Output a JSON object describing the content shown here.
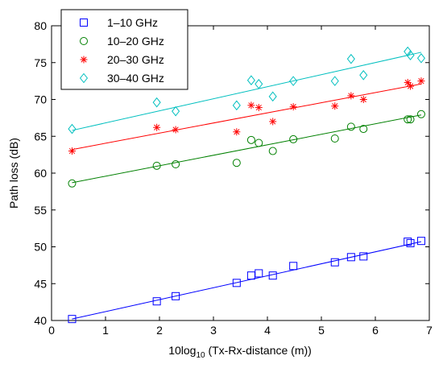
{
  "chart_data": {
    "type": "scatter",
    "xlabel_main": "10log",
    "xlabel_sub": "10",
    "xlabel_rest": " (Tx-Rx-distance (m))",
    "ylabel": "Path loss (dB)",
    "xlim": [
      0,
      7
    ],
    "ylim": [
      40,
      80
    ],
    "xticks": [
      0,
      1,
      2,
      3,
      4,
      5,
      6,
      7
    ],
    "yticks": [
      40,
      45,
      50,
      55,
      60,
      65,
      70,
      75,
      80
    ],
    "legend_position": "top-left",
    "grid": false,
    "series": [
      {
        "name": "1–10 GHz",
        "marker": "square",
        "color": "#0000ff",
        "x": [
          0.38,
          1.95,
          2.3,
          3.43,
          3.7,
          3.84,
          4.1,
          4.48,
          5.25,
          5.55,
          5.78,
          6.6,
          6.65,
          6.85
        ],
        "y": [
          40.2,
          42.6,
          43.3,
          45.1,
          46.1,
          46.4,
          46.1,
          47.4,
          47.9,
          48.6,
          48.7,
          50.7,
          50.5,
          50.8
        ],
        "fit": [
          [
            0.38,
            40.2
          ],
          [
            6.85,
            50.7
          ]
        ]
      },
      {
        "name": "10–20 GHz",
        "marker": "circle",
        "color": "#008000",
        "x": [
          0.38,
          1.95,
          2.3,
          3.43,
          3.7,
          3.84,
          4.1,
          4.48,
          5.25,
          5.55,
          5.78,
          6.6,
          6.65,
          6.85
        ],
        "y": [
          58.6,
          61.0,
          61.2,
          61.4,
          64.5,
          64.1,
          63.0,
          64.6,
          64.7,
          66.3,
          66.0,
          67.3,
          67.3,
          68.0
        ],
        "fit": [
          [
            0.38,
            58.7
          ],
          [
            6.85,
            67.9
          ]
        ]
      },
      {
        "name": "20–30 GHz",
        "marker": "star",
        "color": "#ff0000",
        "x": [
          0.38,
          1.95,
          2.3,
          3.43,
          3.7,
          3.84,
          4.1,
          4.48,
          5.25,
          5.55,
          5.78,
          6.6,
          6.65,
          6.85
        ],
        "y": [
          63.0,
          66.2,
          65.9,
          65.6,
          69.2,
          68.9,
          67.0,
          69.0,
          69.1,
          70.5,
          70.0,
          72.3,
          71.8,
          72.5
        ],
        "fit": [
          [
            0.38,
            63.2
          ],
          [
            6.85,
            72.1
          ]
        ]
      },
      {
        "name": "30–40 GHz",
        "marker": "diamond",
        "color": "#00bfbf",
        "x": [
          0.38,
          1.95,
          2.3,
          3.43,
          3.7,
          3.84,
          4.1,
          4.48,
          5.25,
          5.55,
          5.78,
          6.6,
          6.65,
          6.85
        ],
        "y": [
          66.0,
          69.6,
          68.4,
          69.2,
          72.6,
          72.1,
          70.4,
          72.5,
          72.5,
          75.5,
          73.3,
          76.5,
          76.0,
          75.6
        ],
        "fit": [
          [
            0.38,
            65.8
          ],
          [
            6.85,
            76.4
          ]
        ]
      }
    ]
  }
}
